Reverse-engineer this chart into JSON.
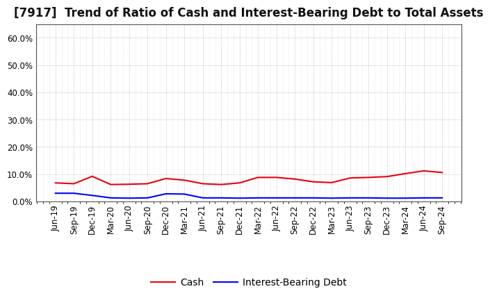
{
  "title": "[7917]  Trend of Ratio of Cash and Interest-Bearing Debt to Total Assets",
  "x_labels": [
    "Jun-19",
    "Sep-19",
    "Dec-19",
    "Mar-20",
    "Jun-20",
    "Sep-20",
    "Dec-20",
    "Mar-21",
    "Jun-21",
    "Sep-21",
    "Dec-21",
    "Mar-22",
    "Jun-22",
    "Sep-22",
    "Dec-22",
    "Mar-23",
    "Jun-23",
    "Sep-23",
    "Dec-23",
    "Mar-24",
    "Jun-24",
    "Sep-24"
  ],
  "cash": [
    0.068,
    0.065,
    0.092,
    0.062,
    0.063,
    0.065,
    0.084,
    0.078,
    0.065,
    0.062,
    0.068,
    0.088,
    0.088,
    0.082,
    0.072,
    0.069,
    0.086,
    0.088,
    0.091,
    0.102,
    0.112,
    0.106
  ],
  "ibd": [
    0.03,
    0.03,
    0.022,
    0.013,
    0.012,
    0.013,
    0.028,
    0.027,
    0.013,
    0.013,
    0.012,
    0.013,
    0.013,
    0.013,
    0.013,
    0.012,
    0.013,
    0.013,
    0.012,
    0.012,
    0.013,
    0.013
  ],
  "cash_color": "#e8000d",
  "ibd_color": "#0000ff",
  "ylim": [
    0.0,
    0.65
  ],
  "yticks": [
    0.0,
    0.1,
    0.2,
    0.3,
    0.4,
    0.5,
    0.6
  ],
  "background_color": "#ffffff",
  "plot_bg_color": "#ffffff",
  "grid_color": "#999999",
  "legend_cash": "Cash",
  "legend_ibd": "Interest-Bearing Debt",
  "title_fontsize": 12,
  "axis_fontsize": 8.5,
  "legend_fontsize": 10
}
